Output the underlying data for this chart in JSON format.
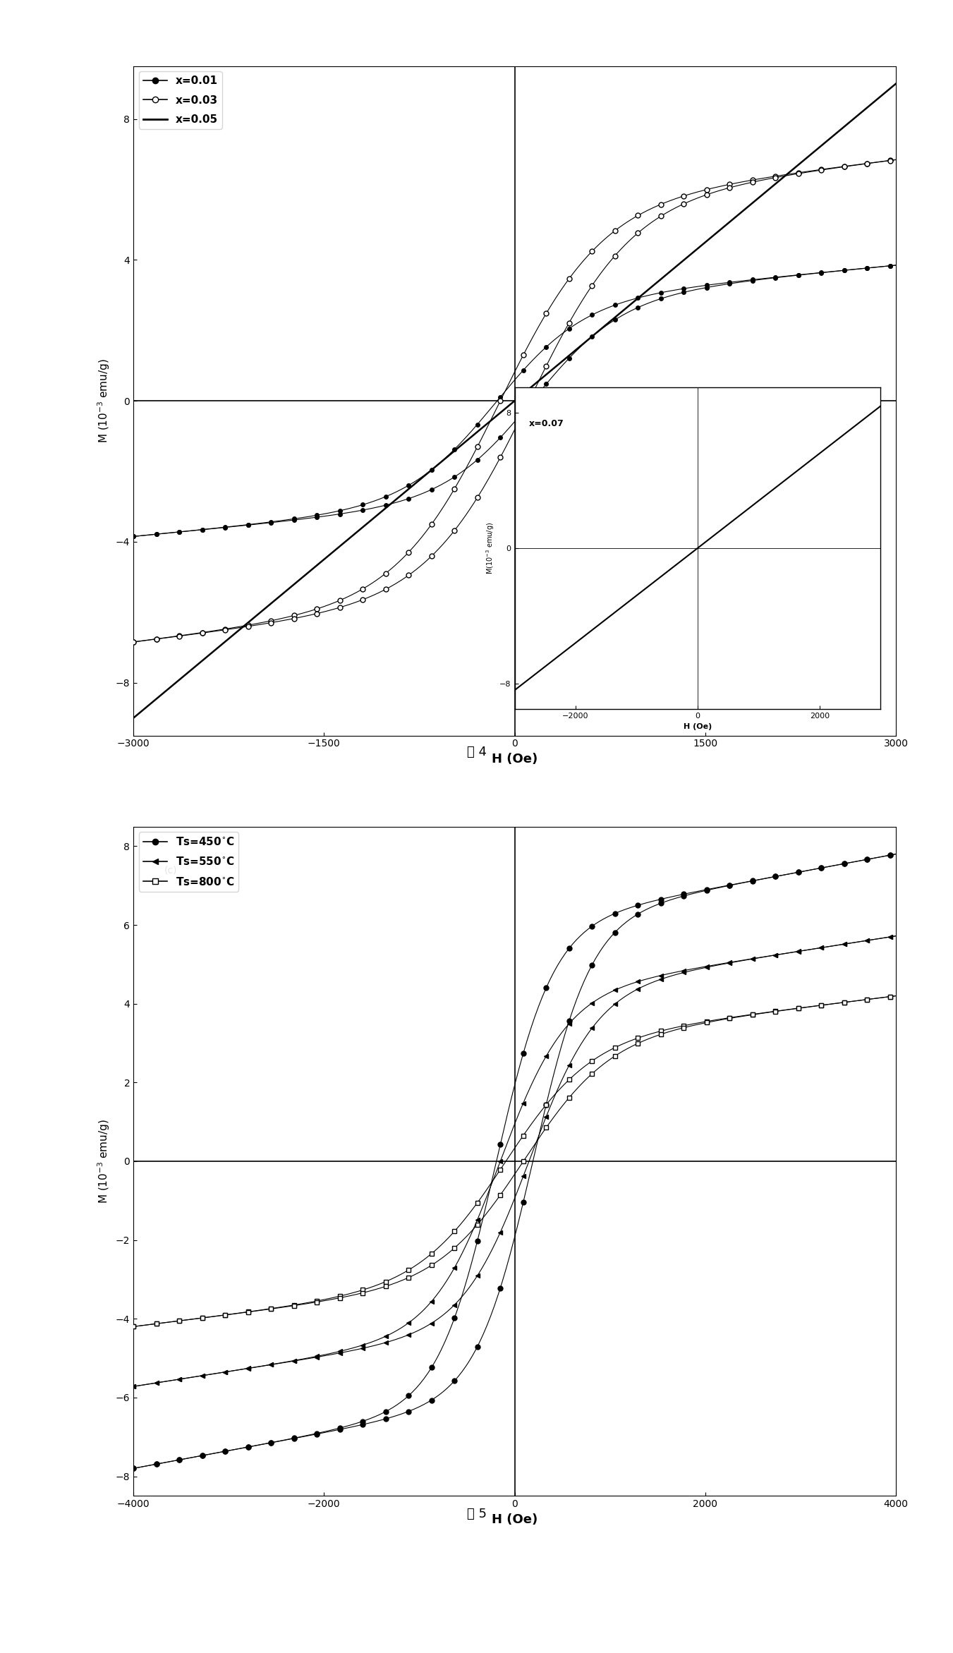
{
  "fig4": {
    "xlabel": "H (Oe)",
    "ylabel": "M (10$^{-3}$ emu/g)",
    "xlim": [
      -3000,
      3000
    ],
    "ylim": [
      -9.5,
      9.5
    ],
    "yticks": [
      -8,
      -4,
      0,
      4,
      8
    ],
    "xticks": [
      -3000,
      -1500,
      0,
      1500,
      3000
    ],
    "caption": "图 4",
    "inset": {
      "xlabel": "H (Oe)",
      "ylabel": "M(10$^{-3}$ emu/g)",
      "xlim": [
        -3000,
        3000
      ],
      "ylim": [
        -9.5,
        9.5
      ],
      "xticks": [
        -2000,
        0,
        2000
      ],
      "yticks": [
        -8,
        0,
        8
      ],
      "label": "x=0.07"
    }
  },
  "fig5": {
    "xlabel": "H (Oe)",
    "ylabel": "M (10$^{-3}$ emu/g)",
    "xlim": [
      -4000,
      4000
    ],
    "ylim": [
      -8.5,
      8.5
    ],
    "yticks": [
      -8,
      -6,
      -4,
      -2,
      0,
      2,
      4,
      6,
      8
    ],
    "xticks": [
      -4000,
      -2000,
      0,
      2000,
      4000
    ],
    "caption": "图 5"
  },
  "background_color": "#ffffff"
}
